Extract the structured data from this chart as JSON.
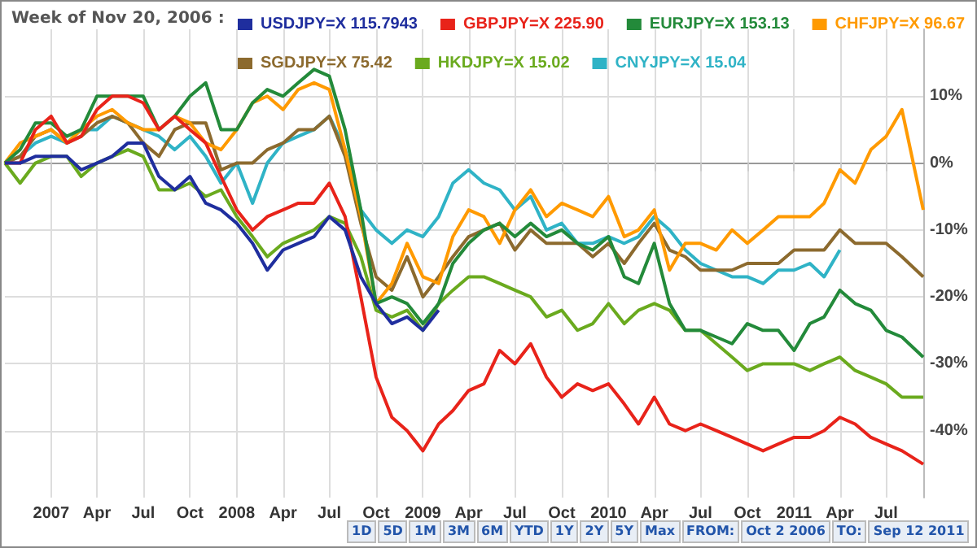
{
  "chart_data": {
    "type": "line",
    "annotations": [
      "Week of Nov 20, 2006 :",
      "1D",
      "5D",
      "1M",
      "3M",
      "6M",
      "YTD",
      "1Y",
      "2Y",
      "5Y",
      "Max",
      "FROM:",
      "Oct 2 2006",
      "TO:",
      "Sep 12 2011"
    ],
    "x": [
      "2006-10-02",
      "2006-11",
      "2006-12",
      "2007-01",
      "2007-02",
      "2007-03",
      "2007-04",
      "2007-05",
      "2007-06",
      "2007-07",
      "2007-08",
      "2007-09",
      "2007-10",
      "2007-11",
      "2007-12",
      "2008-01",
      "2008-02",
      "2008-03",
      "2008-04",
      "2008-05",
      "2008-06",
      "2008-07",
      "2008-08",
      "2008-09",
      "2008-10",
      "2008-11",
      "2008-12",
      "2009-01",
      "2009-02",
      "2009-03",
      "2009-04",
      "2009-05",
      "2009-06",
      "2009-07",
      "2009-08",
      "2009-09",
      "2009-10",
      "2009-11",
      "2009-12",
      "2010-01",
      "2010-02",
      "2010-03",
      "2010-04",
      "2010-05",
      "2010-06",
      "2010-07",
      "2010-08",
      "2010-09",
      "2010-10",
      "2010-11",
      "2010-12",
      "2011-01",
      "2011-02",
      "2011-03",
      "2011-04",
      "2011-05",
      "2011-06",
      "2011-07",
      "2011-08",
      "2011-09-12"
    ],
    "series": [
      {
        "name": "USDJPY=X 115.7943",
        "color": "#1f2e9e",
        "values": [
          0,
          0,
          1,
          1,
          1,
          -1,
          0,
          1,
          3,
          3,
          -2,
          -4,
          -2,
          -6,
          -7,
          -9,
          -12,
          -16,
          -13,
          -12,
          -11,
          -8,
          -10,
          -17,
          -21,
          -24,
          -23,
          -25,
          -22,
          null,
          null,
          null,
          null,
          null,
          null,
          null,
          null,
          null,
          null,
          null,
          null,
          null,
          null,
          null,
          null,
          null,
          null,
          null,
          null,
          null,
          null,
          null,
          null,
          null,
          null,
          null,
          null,
          null,
          null,
          null
        ]
      },
      {
        "name": "GBPJPY=X 225.90",
        "color": "#e8231a",
        "values": [
          0,
          0,
          5,
          7,
          3,
          4,
          8,
          10,
          10,
          9,
          5,
          7,
          5,
          3,
          -2,
          -7,
          -10,
          -8,
          -7,
          -6,
          -6,
          -3,
          -8,
          -20,
          -32,
          -38,
          -40,
          -43,
          -39,
          -37,
          -34,
          -33,
          -28,
          -30,
          -27,
          -32,
          -35,
          -33,
          -34,
          -33,
          -36,
          -39,
          -35,
          -39,
          -40,
          -39,
          -40,
          -41,
          -42,
          -43,
          -42,
          -41,
          -41,
          -40,
          -38,
          -39,
          -41,
          -42,
          -43,
          -45
        ]
      },
      {
        "name": "EURJPY=X 153.13",
        "color": "#238a3a",
        "values": [
          0,
          2,
          6,
          6,
          4,
          5,
          10,
          10,
          10,
          10,
          5,
          7,
          10,
          12,
          5,
          5,
          9,
          11,
          10,
          12,
          14,
          13,
          5,
          -7,
          -21,
          -20,
          -21,
          -24,
          -21,
          -15,
          -12,
          -10,
          -9,
          -11,
          -9,
          -11,
          -10,
          -12,
          -13,
          -11,
          -17,
          -18,
          -12,
          -21,
          -25,
          -25,
          -26,
          -27,
          -24,
          -25,
          -25,
          -28,
          -24,
          -23,
          -19,
          -21,
          -22,
          -25,
          -26,
          -29
        ]
      },
      {
        "name": "CHFJPY=X 96.67",
        "color": "#ff9a00",
        "values": [
          0,
          3,
          4,
          5,
          3,
          5,
          7,
          8,
          6,
          5,
          5,
          7,
          6,
          3,
          2,
          5,
          9,
          10,
          8,
          11,
          12,
          11,
          2,
          -8,
          -21,
          -18,
          -12,
          -17,
          -18,
          -11,
          -7,
          -8,
          -12,
          -7,
          -4,
          -8,
          -6,
          -7,
          -8,
          -5,
          -11,
          -10,
          -7,
          -16,
          -12,
          -12,
          -13,
          -10,
          -12,
          -10,
          -8,
          -8,
          -8,
          -6,
          -1,
          -3,
          2,
          4,
          8,
          -7
        ]
      },
      {
        "name": "SGDJPY=X 75.42",
        "color": "#8c6a2e",
        "values": [
          0,
          1,
          4,
          5,
          3,
          4,
          6,
          7,
          6,
          3,
          1,
          5,
          6,
          6,
          -1,
          0,
          0,
          2,
          3,
          5,
          5,
          7,
          1,
          -9,
          -17,
          -19,
          -14,
          -20,
          -17,
          -14,
          -11,
          -10,
          -9,
          -13,
          -10,
          -12,
          -12,
          -12,
          -14,
          -12,
          -15,
          -12,
          -9,
          -13,
          -14,
          -16,
          -16,
          -16,
          -15,
          -15,
          -15,
          -13,
          -13,
          -13,
          -10,
          -12,
          -12,
          -12,
          -14,
          -17
        ]
      },
      {
        "name": "HKDJPY=X 15.02",
        "color": "#6aaa1e",
        "values": [
          0,
          -3,
          0,
          1,
          1,
          -2,
          0,
          1,
          2,
          1,
          -4,
          -4,
          -3,
          -5,
          -4,
          -8,
          -11,
          -14,
          -12,
          -11,
          -10,
          -8,
          -9,
          -14,
          -22,
          -23,
          -22,
          -25,
          -21,
          -19,
          -17,
          -17,
          -18,
          -19,
          -20,
          -23,
          -22,
          -25,
          -24,
          -21,
          -24,
          -22,
          -21,
          -22,
          -25,
          -25,
          -27,
          -29,
          -31,
          -30,
          -30,
          -30,
          -31,
          -30,
          -29,
          -31,
          -32,
          -33,
          -35,
          -35
        ]
      },
      {
        "name": "CNYJPY=X 15.04",
        "color": "#2fb3c6",
        "values": [
          0,
          1,
          3,
          4,
          3,
          5,
          5,
          7,
          6,
          5,
          4,
          2,
          4,
          1,
          -3,
          0,
          -6,
          0,
          3,
          4,
          5,
          7,
          2,
          -7,
          -10,
          -12,
          -10,
          -11,
          -8,
          -3,
          -1,
          -3,
          -4,
          -7,
          -5,
          -10,
          -9,
          -12,
          -12,
          -11,
          -12,
          -11,
          -8,
          -10,
          -13,
          -15,
          -16,
          -17,
          -17,
          -18,
          -16,
          -16,
          -15,
          -17,
          -13,
          null,
          null,
          null,
          null,
          null
        ]
      }
    ],
    "xlim": [
      "2006-10-02",
      "2011-09-12"
    ],
    "xticks": [
      {
        "value": "2007-01-01",
        "label": "2007"
      },
      {
        "value": "2007-04-01",
        "label": "Apr"
      },
      {
        "value": "2007-07-01",
        "label": "Jul"
      },
      {
        "value": "2007-10-01",
        "label": "Oct"
      },
      {
        "value": "2008-01-01",
        "label": "2008"
      },
      {
        "value": "2008-04-01",
        "label": "Apr"
      },
      {
        "value": "2008-07-01",
        "label": "Jul"
      },
      {
        "value": "2008-10-01",
        "label": "Oct"
      },
      {
        "value": "2009-01-01",
        "label": "2009"
      },
      {
        "value": "2009-04-01",
        "label": "Apr"
      },
      {
        "value": "2009-07-01",
        "label": "Jul"
      },
      {
        "value": "2009-10-01",
        "label": "Oct"
      },
      {
        "value": "2010-01-01",
        "label": "2010"
      },
      {
        "value": "2010-04-01",
        "label": "Apr"
      },
      {
        "value": "2010-07-01",
        "label": "Jul"
      },
      {
        "value": "2010-10-01",
        "label": "Oct"
      },
      {
        "value": "2011-01-01",
        "label": "2011"
      },
      {
        "value": "2011-04-01",
        "label": "Apr"
      },
      {
        "value": "2011-07-01",
        "label": "Jul"
      }
    ],
    "ylim": [
      -50,
      20
    ],
    "yticks": [
      {
        "value": -40,
        "label": "-40%"
      },
      {
        "value": -30,
        "label": "-30%"
      },
      {
        "value": -20,
        "label": "-20%"
      },
      {
        "value": -10,
        "label": "-10%"
      },
      {
        "value": 0,
        "label": "0%"
      },
      {
        "value": 10,
        "label": "10%"
      }
    ],
    "grid": true,
    "legend": "top",
    "marker": "none",
    "line_style": "solid"
  }
}
